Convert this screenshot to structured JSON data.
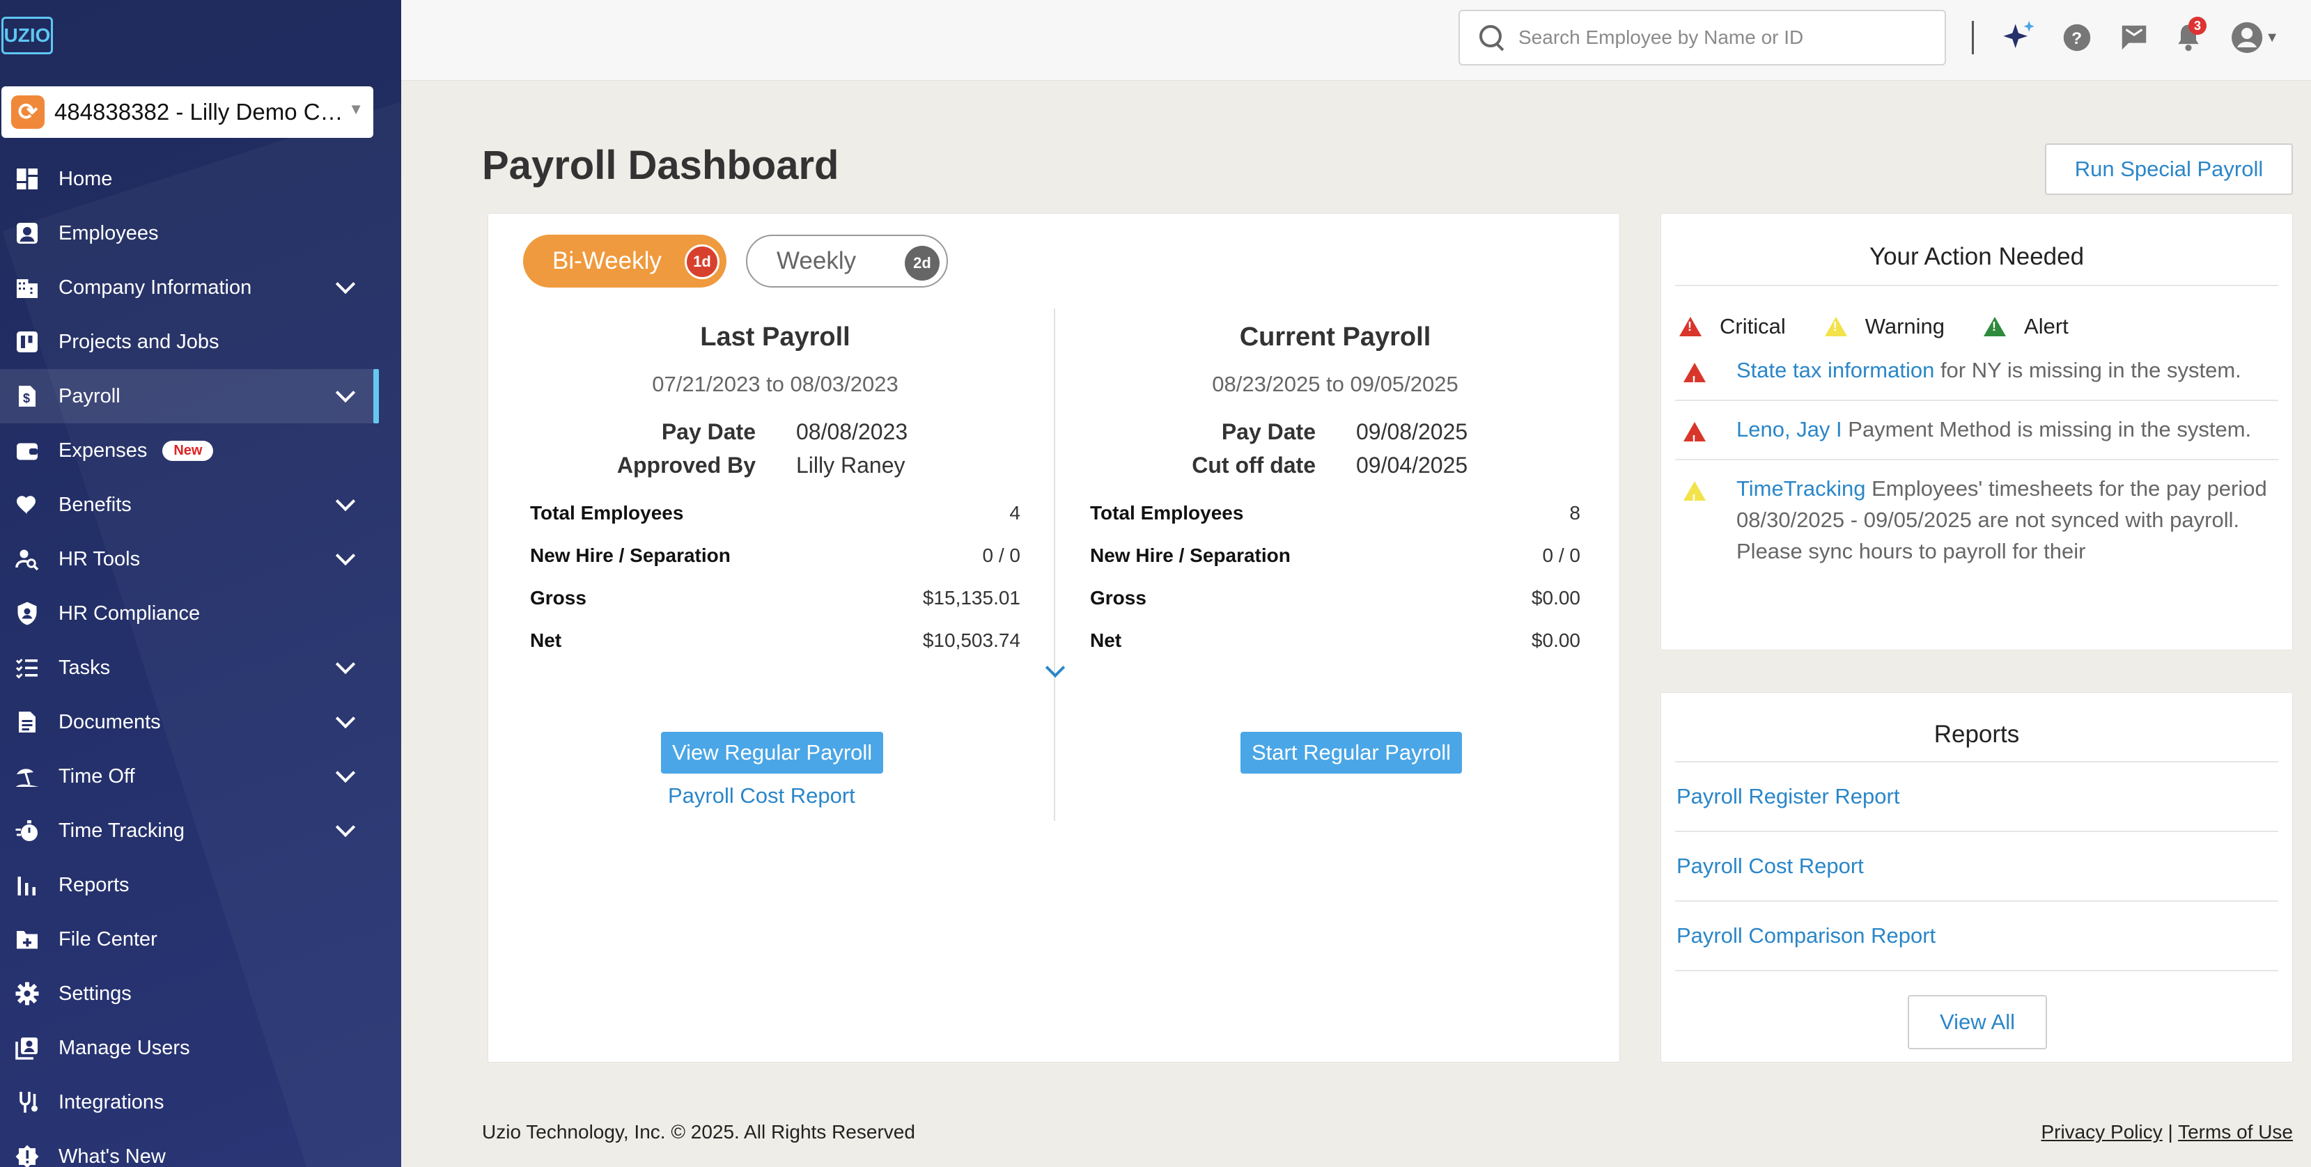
{
  "app": {
    "logo_text": "UZIO",
    "company_selector": "484838382 - Lilly Demo Co..."
  },
  "sidebar": {
    "items": [
      {
        "label": "Home",
        "icon": "dashboard-icon"
      },
      {
        "label": "Employees",
        "icon": "employee-badge-icon"
      },
      {
        "label": "Company Information",
        "icon": "building-icon",
        "expandable": true
      },
      {
        "label": "Projects and Jobs",
        "icon": "kanban-icon"
      },
      {
        "label": "Payroll",
        "icon": "payroll-document-icon",
        "expandable": true,
        "active": true
      },
      {
        "label": "Expenses",
        "icon": "wallet-icon",
        "badge": "New"
      },
      {
        "label": "Benefits",
        "icon": "heart-icon",
        "expandable": true
      },
      {
        "label": "HR Tools",
        "icon": "person-search-icon",
        "expandable": true
      },
      {
        "label": "HR Compliance",
        "icon": "shield-icon"
      },
      {
        "label": "Tasks",
        "icon": "checklist-icon",
        "expandable": true
      },
      {
        "label": "Documents",
        "icon": "document-icon",
        "expandable": true
      },
      {
        "label": "Time Off",
        "icon": "beach-icon",
        "expandable": true
      },
      {
        "label": "Time Tracking",
        "icon": "stopwatch-icon",
        "expandable": true
      },
      {
        "label": "Reports",
        "icon": "bar-chart-icon"
      },
      {
        "label": "File Center",
        "icon": "folder-plus-icon"
      },
      {
        "label": "Settings",
        "icon": "gear-icon"
      },
      {
        "label": "Manage Users",
        "icon": "manage-users-icon"
      },
      {
        "label": "Integrations",
        "icon": "integrations-icon"
      },
      {
        "label": "What's New",
        "icon": "announcement-icon"
      }
    ]
  },
  "topbar": {
    "search_placeholder": "Search Employee by Name or ID",
    "notification_count": "3"
  },
  "main": {
    "title": "Payroll Dashboard",
    "run_special_label": "Run Special Payroll",
    "tabs": [
      {
        "label": "Bi-Weekly",
        "badge": "1d",
        "active": true
      },
      {
        "label": "Weekly",
        "badge": "2d",
        "active": false
      }
    ],
    "last_payroll": {
      "heading": "Last Payroll",
      "range": "07/21/2023 to 08/03/2023",
      "pay_date_label": "Pay Date",
      "pay_date": "08/08/2023",
      "second_label": "Approved By",
      "second_value": "Lilly Raney",
      "stats": [
        {
          "label": "Total Employees",
          "value": "4"
        },
        {
          "label": "New Hire / Separation",
          "value": "0 / 0"
        },
        {
          "label": "Gross",
          "value": "$15,135.01"
        },
        {
          "label": "Net",
          "value": "$10,503.74"
        }
      ],
      "button_label": "View Regular Payroll",
      "link_label": "Payroll Cost Report"
    },
    "current_payroll": {
      "heading": "Current Payroll",
      "range": "08/23/2025 to 09/05/2025",
      "pay_date_label": "Pay Date",
      "pay_date": "09/08/2025",
      "second_label": "Cut off date",
      "second_value": "09/04/2025",
      "stats": [
        {
          "label": "Total Employees",
          "value": "8"
        },
        {
          "label": "New Hire / Separation",
          "value": "0 / 0"
        },
        {
          "label": "Gross",
          "value": "$0.00"
        },
        {
          "label": "Net",
          "value": "$0.00"
        }
      ],
      "button_label": "Start Regular Payroll"
    }
  },
  "action_needed": {
    "title": "Your Action Needed",
    "legend": {
      "critical": "Critical",
      "warning": "Warning",
      "alert": "Alert"
    },
    "items": [
      {
        "severity": "critical",
        "link": "State tax information",
        "text": " for NY is missing in the system."
      },
      {
        "severity": "critical",
        "link": "Leno, Jay I",
        "text": " Payment Method is missing in the system."
      },
      {
        "severity": "warning",
        "link": "TimeTracking",
        "text": " Employees' timesheets for the pay period 08/30/2025 - 09/05/2025 are not synced with payroll. Please sync hours to payroll for their"
      }
    ]
  },
  "reports": {
    "title": "Reports",
    "links": [
      "Payroll Register Report",
      "Payroll Cost Report",
      "Payroll Comparison Report"
    ],
    "view_all_label": "View All"
  },
  "footer": {
    "copyright": "Uzio Technology, Inc. © 2025. All Rights Reserved",
    "privacy": "Privacy Policy",
    "separator": "|",
    "terms": "Terms of Use"
  },
  "colors": {
    "sidebar_bg": "#1f2b5c",
    "accent_blue": "#2a86c9",
    "active_tab": "#ef9a3e",
    "critical": "#d9362b",
    "warning": "#f3e24a",
    "alert": "#2f8a3b"
  }
}
